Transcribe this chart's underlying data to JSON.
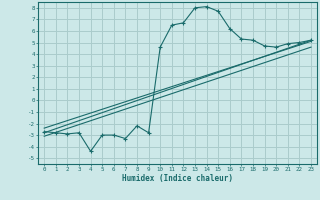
{
  "xlabel": "Humidex (Indice chaleur)",
  "ylabel": "",
  "background_color": "#cce8e8",
  "grid_color": "#aacccc",
  "line_color": "#1a6b6b",
  "xlim": [
    -0.5,
    23.5
  ],
  "ylim": [
    -5.5,
    8.5
  ],
  "xticks": [
    0,
    1,
    2,
    3,
    4,
    5,
    6,
    7,
    8,
    9,
    10,
    11,
    12,
    13,
    14,
    15,
    16,
    17,
    18,
    19,
    20,
    21,
    22,
    23
  ],
  "yticks": [
    -5,
    -4,
    -3,
    -2,
    -1,
    0,
    1,
    2,
    3,
    4,
    5,
    6,
    7,
    8
  ],
  "scatter_x": [
    0,
    1,
    2,
    3,
    4,
    5,
    6,
    7,
    8,
    9,
    10,
    11,
    12,
    13,
    14,
    15,
    16,
    17,
    18,
    19,
    20,
    21,
    22,
    23
  ],
  "scatter_y": [
    -2.7,
    -2.8,
    -2.9,
    -2.8,
    -4.4,
    -3.0,
    -3.0,
    -3.3,
    -2.2,
    -2.8,
    4.6,
    6.5,
    6.7,
    8.0,
    8.1,
    7.7,
    6.2,
    5.3,
    5.2,
    4.7,
    4.6,
    4.9,
    5.0,
    5.2
  ],
  "line1_x": [
    0,
    23
  ],
  "line1_y": [
    -2.8,
    5.2
  ],
  "line2_x": [
    0,
    23
  ],
  "line2_y": [
    -2.4,
    5.1
  ],
  "line3_x": [
    0,
    23
  ],
  "line3_y": [
    -3.1,
    4.6
  ]
}
